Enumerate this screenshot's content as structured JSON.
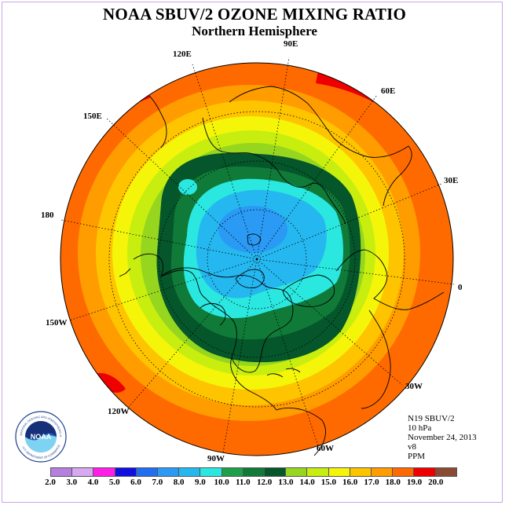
{
  "title": "NOAA SBUV/2 OZONE MIXING RATIO",
  "subtitle": "Northern Hemisphere",
  "longitude_labels": [
    "90E",
    "60E",
    "30E",
    "0",
    "30W",
    "60W",
    "90W",
    "120W",
    "150W",
    "180",
    "150E",
    "120E"
  ],
  "info": {
    "instrument": "N19 SBUV/2",
    "level": "10 hPa",
    "date": "November 24, 2013",
    "version": "v8",
    "units": "PPM"
  },
  "logo": {
    "text": "NOAA",
    "ring_text": "NATIONAL OCEANIC AND ATMOSPHERIC ADMINISTRATION",
    "ring_text_bottom": "U.S. DEPARTMENT OF COMMERCE"
  },
  "colorbar": {
    "labels": [
      "2.0",
      "3.0",
      "4.0",
      "5.0",
      "6.0",
      "7.0",
      "8.0",
      "9.0",
      "10.0",
      "11.0",
      "12.0",
      "13.0",
      "14.0",
      "15.0",
      "16.0",
      "17.0",
      "18.0",
      "19.0",
      "20.0"
    ],
    "colors": [
      "#b57fe0",
      "#d7a9f2",
      "#ff1ee8",
      "#1010e0",
      "#1f6ff0",
      "#2a9af5",
      "#25b8f0",
      "#2ae8e0",
      "#1ea04a",
      "#107a38",
      "#05562a",
      "#96d61e",
      "#c8ee10",
      "#f5f50a",
      "#ffc400",
      "#ff9c00",
      "#ff6a00",
      "#ee0000",
      "#8b4a33"
    ]
  },
  "map_colors": {
    "background": "#ffffff",
    "coast": "#000000",
    "grid": "#000000"
  }
}
